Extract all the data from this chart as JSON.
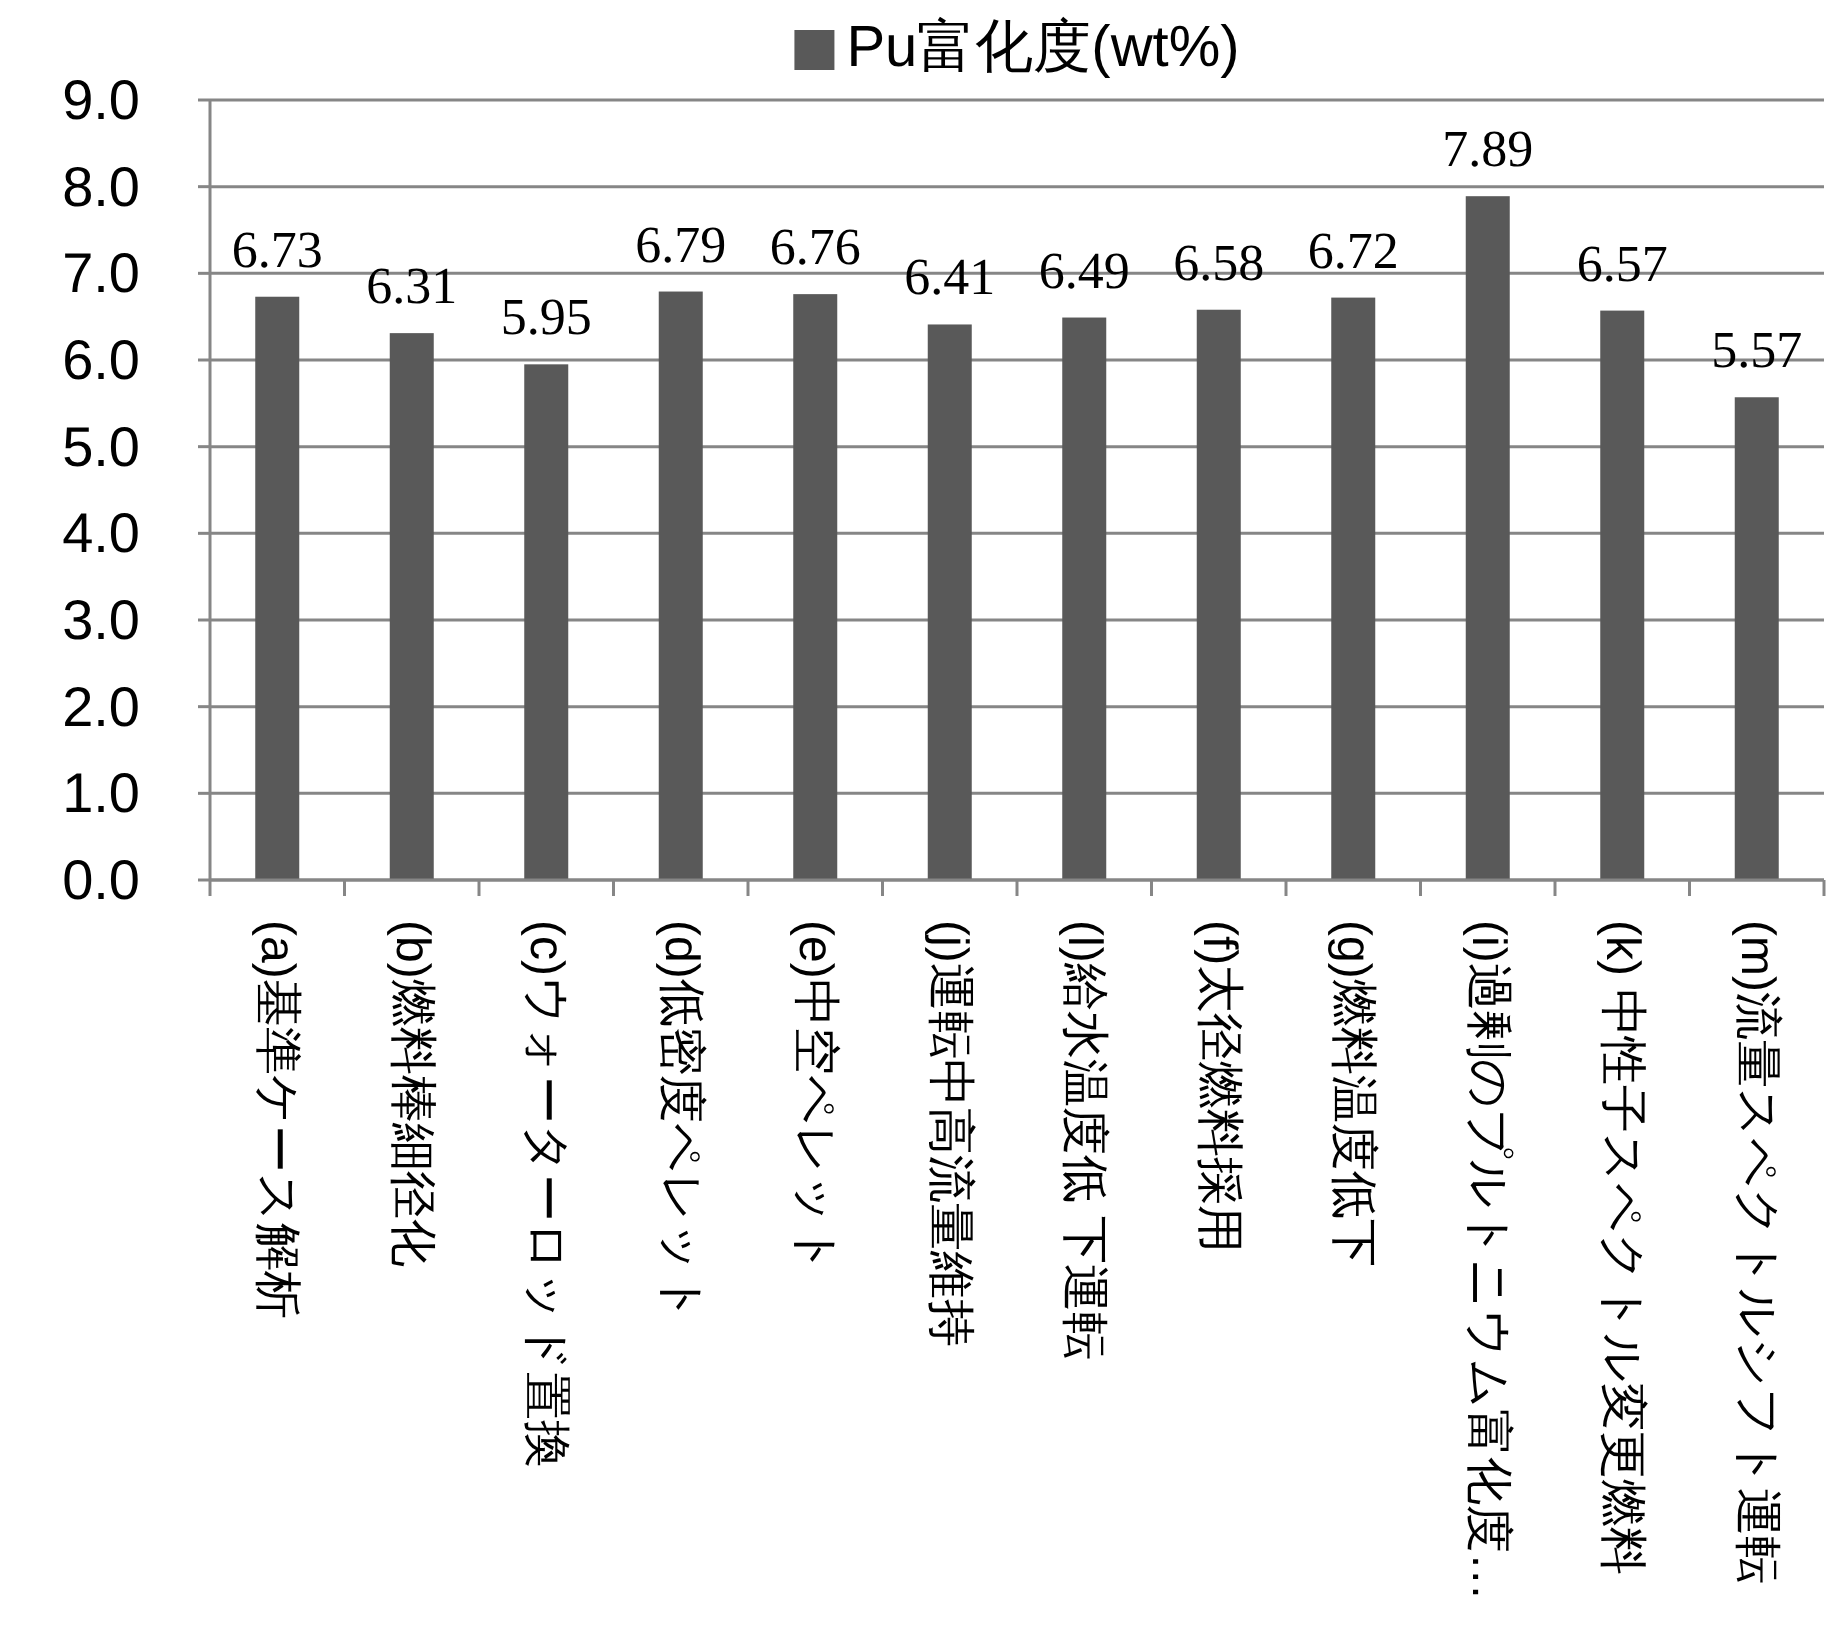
{
  "chart_data": {
    "type": "bar",
    "categories": [
      "(a)基準ケース解析",
      "(b)燃料棒細径化",
      "(c)ウォーターロッド置換",
      "(d)低密度ペレット",
      "(e)中空ペレット",
      "(j)運転中高流量維持",
      "(l)給水温度低 下運転",
      "(f)太径燃料採用",
      "(g)燃料温度低下",
      "(i)過剰のプルトニウム富化度…",
      "(k) 中性子スペクトル変更燃料",
      "(m)流量スペクトルシフト運転"
    ],
    "series": [
      {
        "name": "Pu富化度(wt%)",
        "color": "#595959",
        "values": [
          6.73,
          6.31,
          5.95,
          6.79,
          6.76,
          6.41,
          6.49,
          6.58,
          6.72,
          7.89,
          6.57,
          5.57
        ]
      }
    ],
    "ylim": [
      0,
      9
    ],
    "yticks": [
      {
        "value": 0,
        "label": "0.0"
      },
      {
        "value": 1,
        "label": "1.0"
      },
      {
        "value": 2,
        "label": "2.0"
      },
      {
        "value": 3,
        "label": "3.0"
      },
      {
        "value": 4,
        "label": "4.0"
      },
      {
        "value": 5,
        "label": "5.0"
      },
      {
        "value": 6,
        "label": "6.0"
      },
      {
        "value": 7,
        "label": "7.0"
      },
      {
        "value": 8,
        "label": "8.0"
      },
      {
        "value": 9,
        "label": "9.0"
      }
    ],
    "grid": "y",
    "legend": "top",
    "data_labels": true
  }
}
